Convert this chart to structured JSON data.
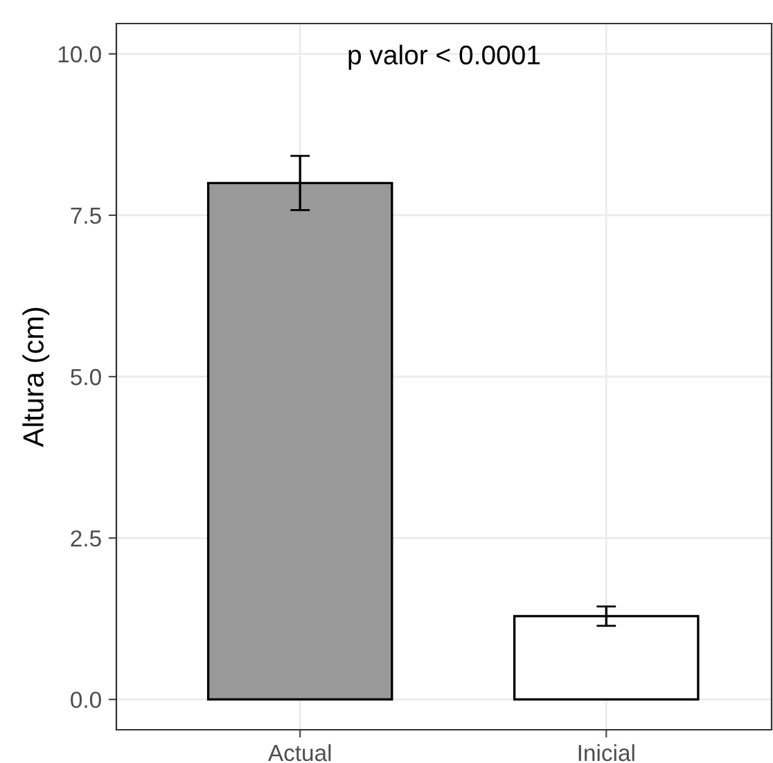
{
  "chart_data": {
    "type": "bar",
    "ylabel": "Altura (cm)",
    "categories": [
      "Actual",
      "Inicial"
    ],
    "values": [
      8.0,
      1.29
    ],
    "colors": [
      "#999999",
      "#ffffff"
    ],
    "errors": [
      0.42,
      0.15
    ],
    "ylim": [
      -0.47,
      10.47
    ],
    "yticks": [
      {
        "value": 0,
        "label": "0.0"
      },
      {
        "value": 2.5,
        "label": "2.5"
      },
      {
        "value": 5,
        "label": "5.0"
      },
      {
        "value": 7.5,
        "label": "7.5"
      },
      {
        "value": 10,
        "label": "10.0"
      }
    ],
    "grid": true,
    "annotations": [
      "p valor < 0.0001"
    ]
  }
}
